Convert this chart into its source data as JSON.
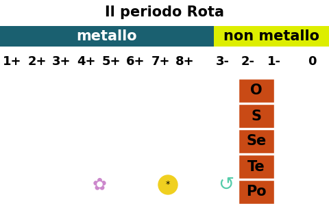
{
  "title": "Il periodo Rota",
  "title_fontsize": 15,
  "title_fontweight": "bold",
  "bg_color": "#ffffff",
  "metallo_label": "metallo",
  "metallo_bg": "#1a6070",
  "metallo_text_color": "#ffffff",
  "non_metallo_label": "non metallo",
  "non_metallo_bg": "#ddee00",
  "non_metallo_text_color": "#000000",
  "header_fontsize": 15,
  "header_fontweight": "bold",
  "charge_labels": [
    "1+",
    "2+",
    "3+",
    "4+",
    "5+",
    "6+",
    "7+",
    "8+",
    "3-",
    "2-",
    "1-",
    "0"
  ],
  "charge_fontsize": 13,
  "charge_fontweight": "bold",
  "elements": [
    "O",
    "S",
    "Se",
    "Te",
    "Po"
  ],
  "element_bg": "#c94a15",
  "element_text_color": "#000000",
  "element_fontsize": 15,
  "element_fontweight": "bold"
}
